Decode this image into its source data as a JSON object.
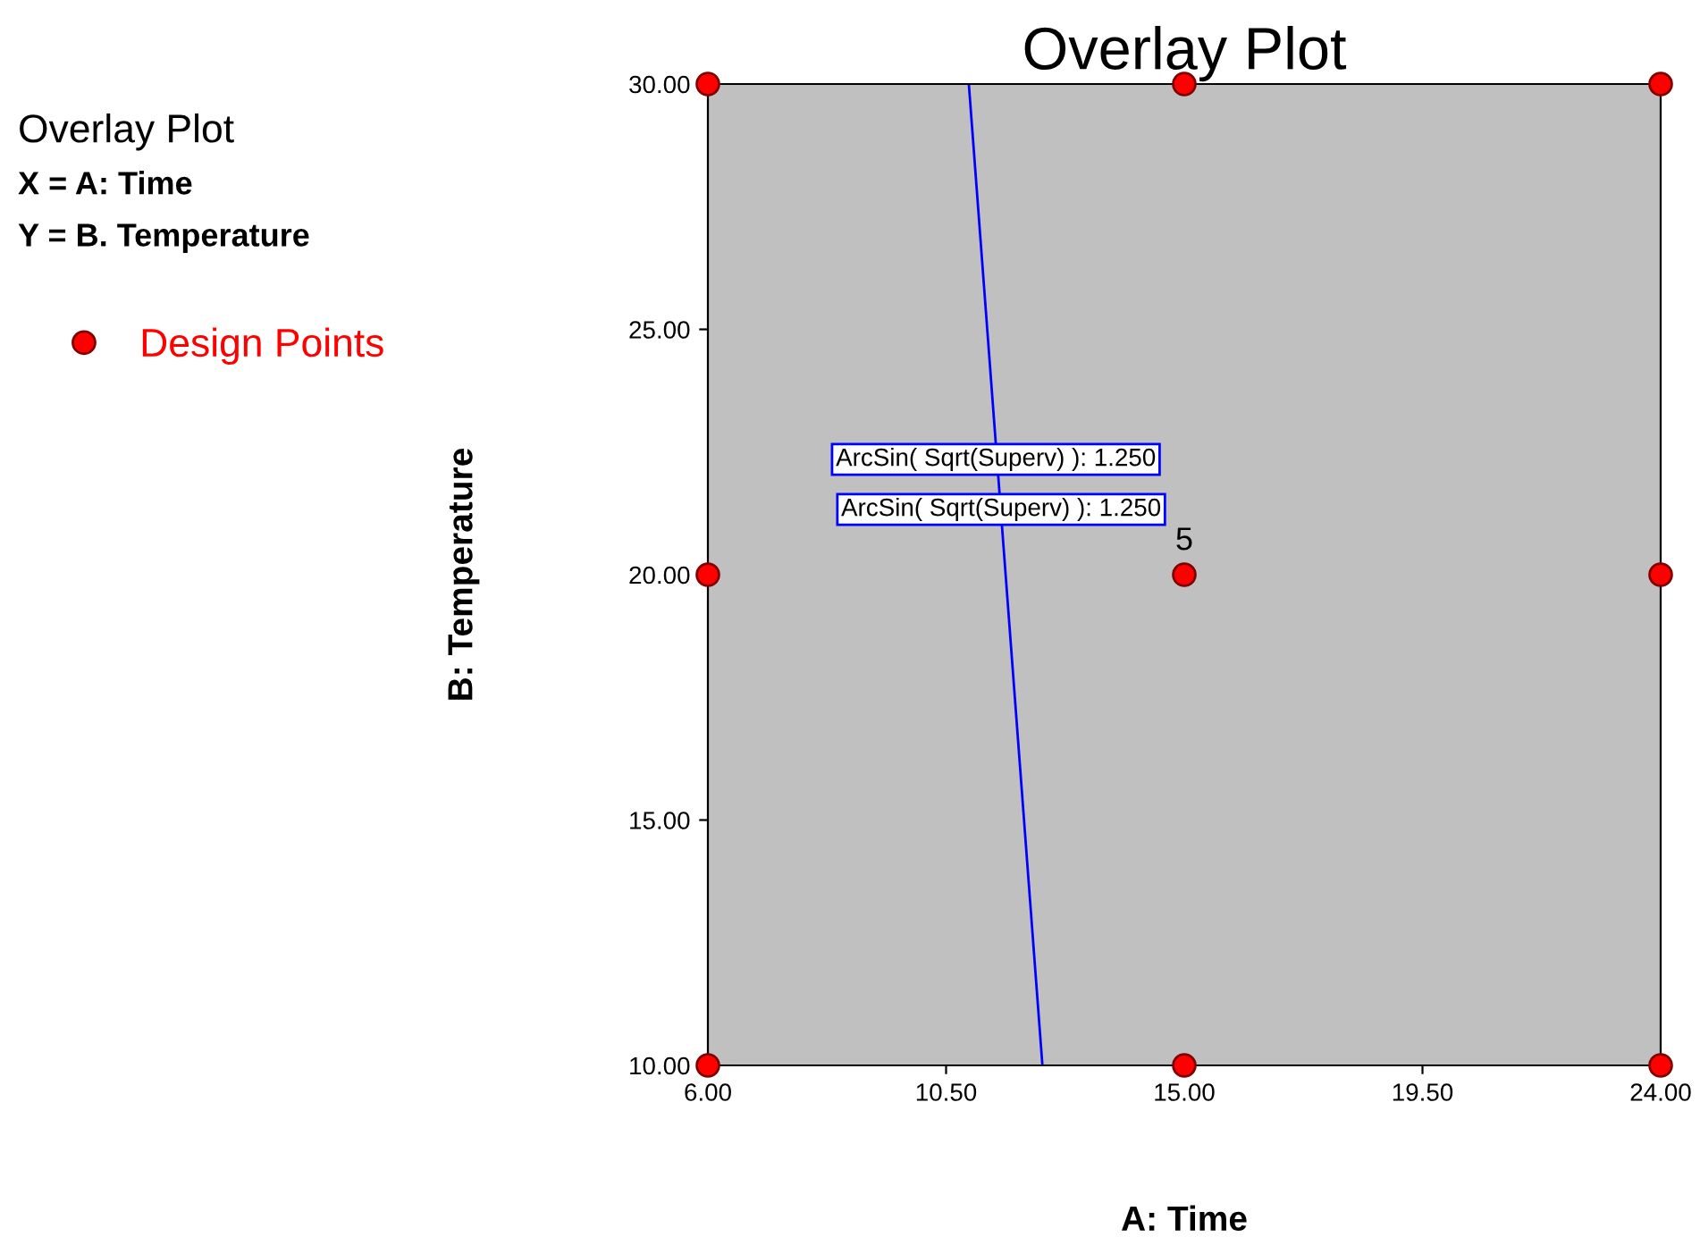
{
  "chart_data": {
    "type": "scatter",
    "title": "Overlay Plot",
    "xlabel": "A: Time",
    "ylabel": "B: Temperature",
    "xlim": [
      6,
      24
    ],
    "ylim": [
      10,
      30
    ],
    "xticks": [
      {
        "value": 6,
        "label": "6.00"
      },
      {
        "value": 10.5,
        "label": "10.50"
      },
      {
        "value": 15,
        "label": "15.00"
      },
      {
        "value": 19.5,
        "label": "19.50"
      },
      {
        "value": 24,
        "label": "24.00"
      }
    ],
    "yticks": [
      {
        "value": 10,
        "label": "10.00"
      },
      {
        "value": 15,
        "label": "15.00"
      },
      {
        "value": 20,
        "label": "20.00"
      },
      {
        "value": 25,
        "label": "25.00"
      },
      {
        "value": 30,
        "label": "30.00"
      }
    ],
    "series": [
      {
        "name": "Design Points",
        "color": "#ff0000",
        "marker": "circle",
        "x": [
          6,
          15,
          24,
          6,
          15,
          24,
          6,
          15,
          24
        ],
        "values": [
          30,
          30,
          30,
          20,
          20,
          20,
          10,
          10,
          10
        ]
      },
      {
        "type": "line",
        "color": "#0000ff",
        "line_style": "solid",
        "marker": "none",
        "x": [
          10.93,
          12.32
        ],
        "values": [
          30,
          10
        ]
      }
    ],
    "annotations": [
      "Overlay Plot",
      "X = A: Time",
      "Y = B. Temperature",
      {
        "text": "ArcSin( Sqrt(Superv) ): 1.250",
        "x": 11.44,
        "y": 22.35
      },
      {
        "text": "ArcSin( Sqrt(Superv) ): 1.250",
        "x": 11.54,
        "y": 21.33
      },
      {
        "text": "5",
        "x": 15,
        "y": 20
      }
    ],
    "legend": "top left",
    "grid": false
  }
}
